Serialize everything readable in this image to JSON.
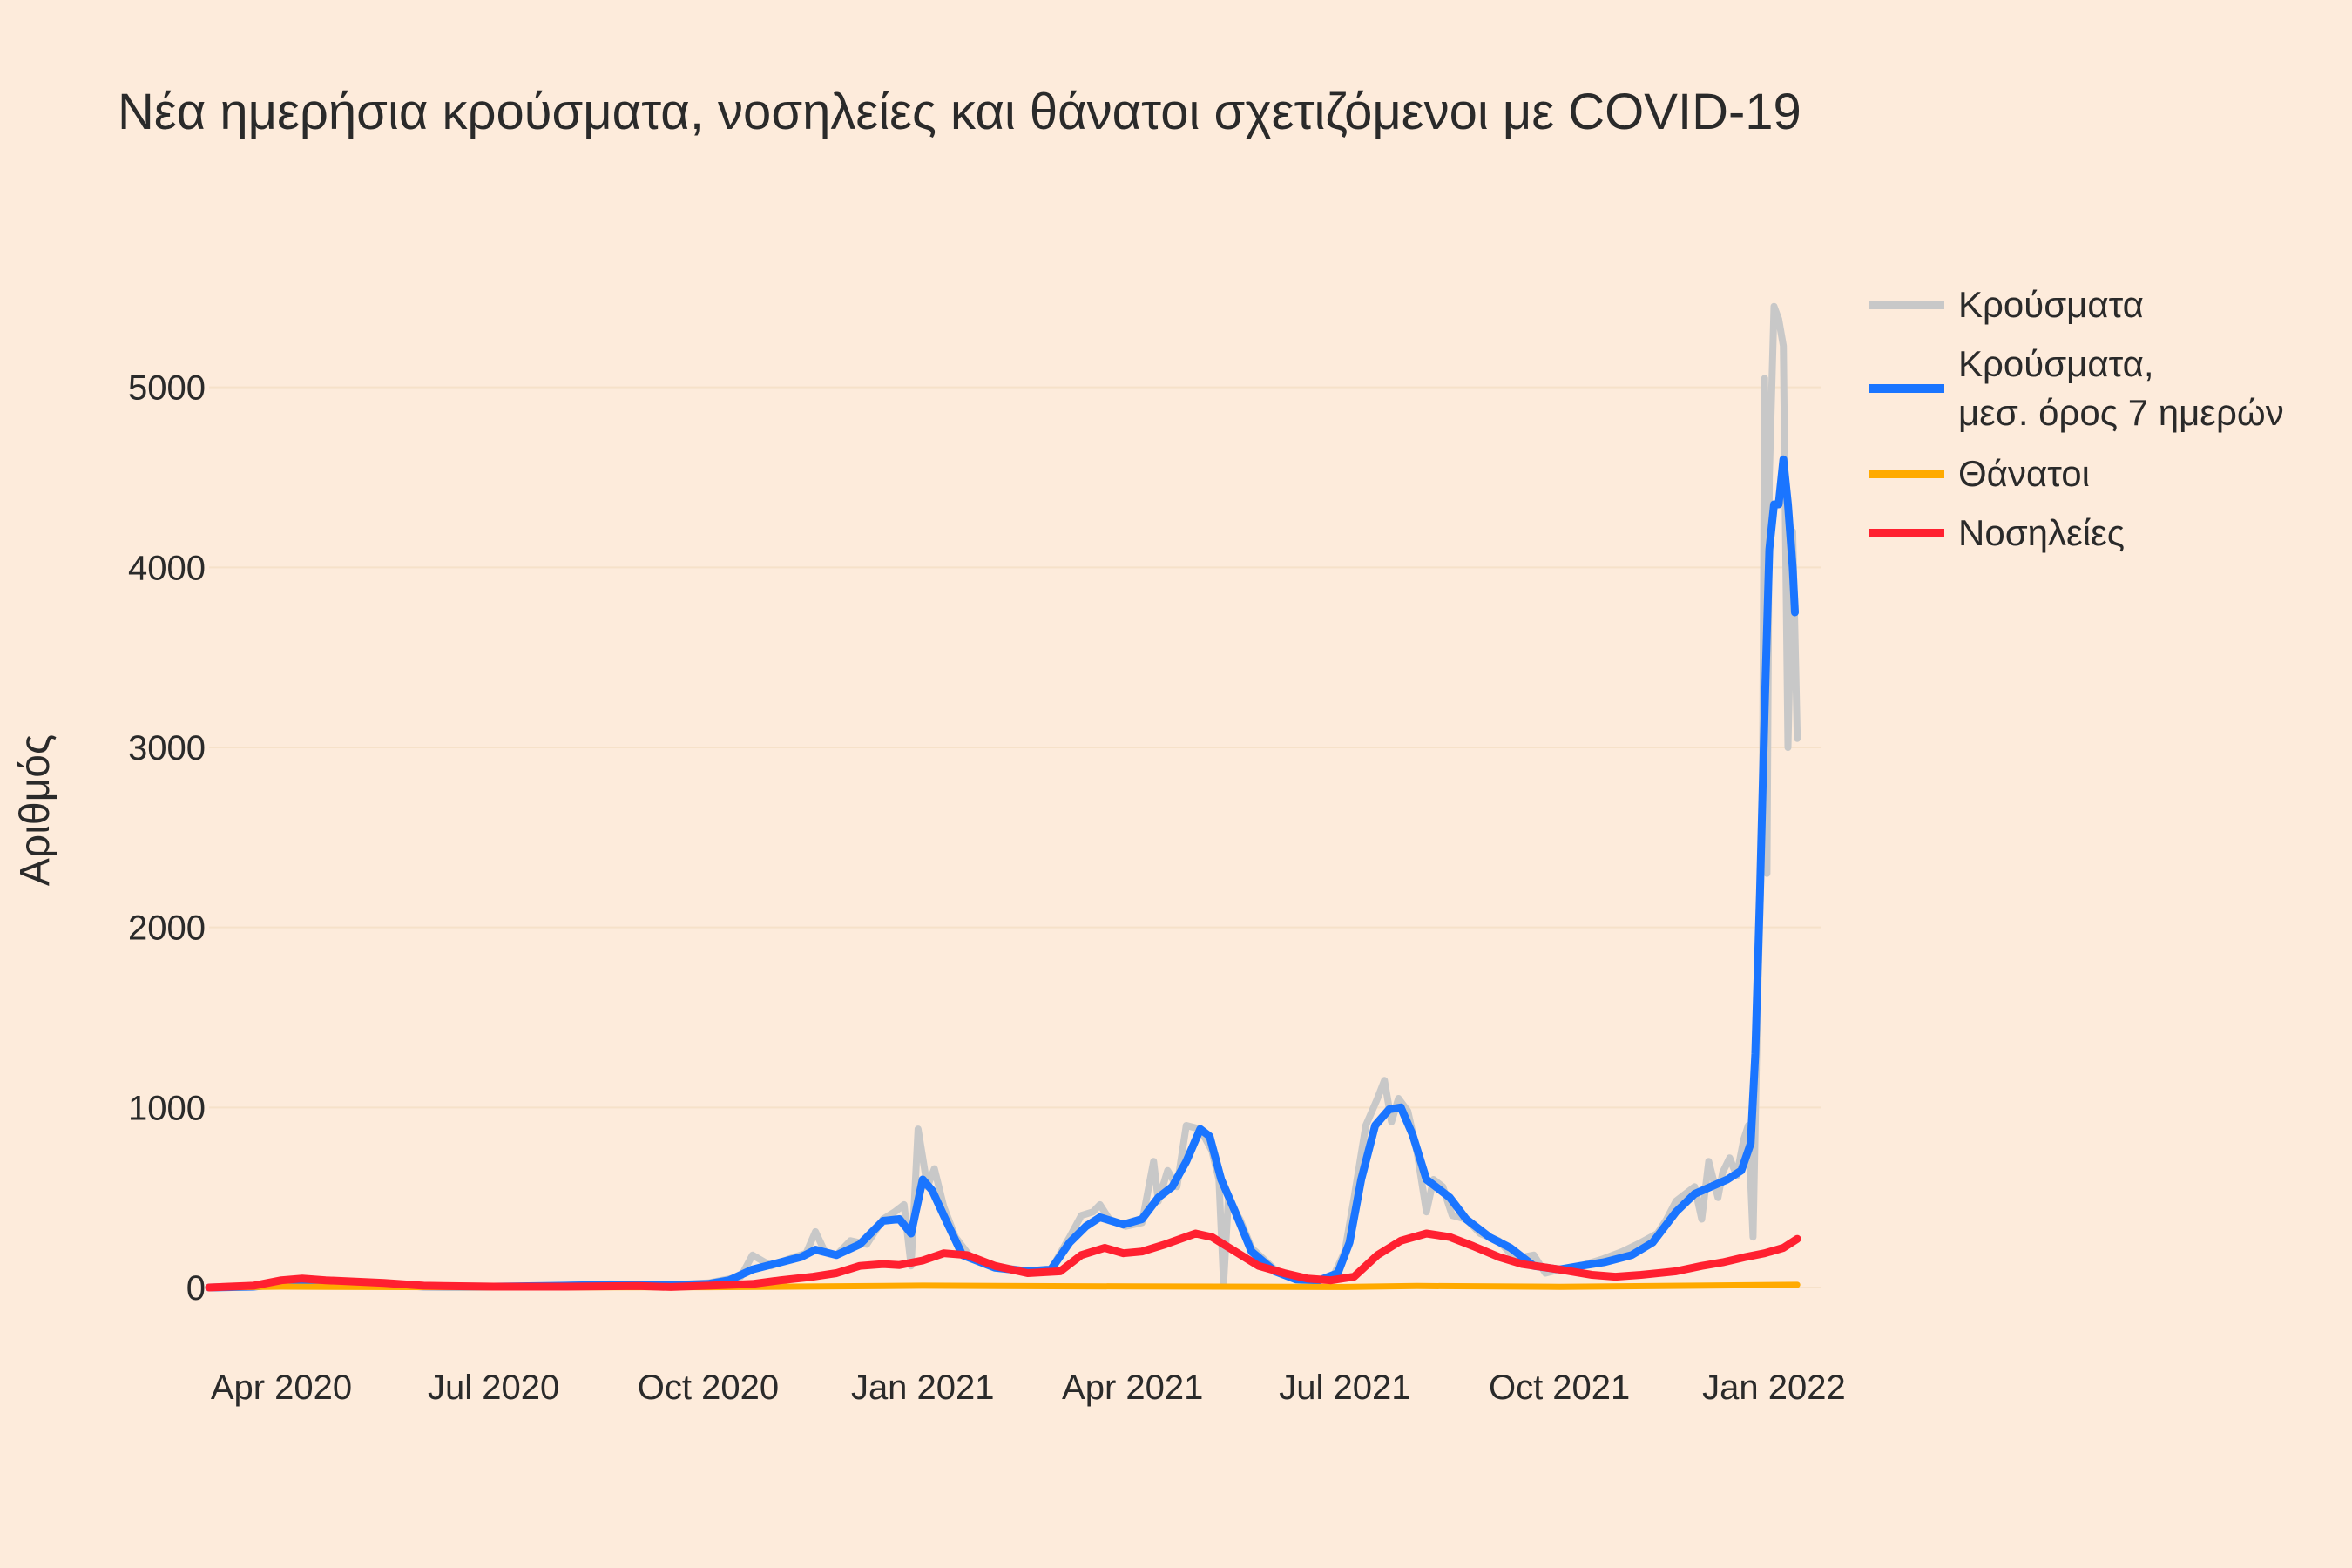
{
  "chart_data": {
    "type": "line",
    "title": "Νέα ημερήσια κρούσματα, νοσηλείες και θάνατοι σχετιζόμενοι με COVID-19",
    "xlabel": "",
    "ylabel": "Αριθμός",
    "xlim": [
      "2020-03-01",
      "2022-01-21"
    ],
    "ylim": [
      -300,
      5700
    ],
    "x_ticks": [
      {
        "date": "2020-04-01",
        "label": "Apr 2020"
      },
      {
        "date": "2020-07-01",
        "label": "Jul 2020"
      },
      {
        "date": "2020-10-01",
        "label": "Oct 2020"
      },
      {
        "date": "2021-01-01",
        "label": "Jan 2021"
      },
      {
        "date": "2021-04-01",
        "label": "Apr 2021"
      },
      {
        "date": "2021-07-01",
        "label": "Jul 2021"
      },
      {
        "date": "2021-10-01",
        "label": "Oct 2021"
      },
      {
        "date": "2022-01-01",
        "label": "Jan 2022"
      }
    ],
    "y_ticks": [
      0,
      1000,
      2000,
      3000,
      4000,
      5000
    ],
    "grid": true,
    "legend_position": "right",
    "series": [
      {
        "name": "Κρούσματα",
        "color": "#c8c8c8",
        "points": [
          [
            "2020-03-01",
            0
          ],
          [
            "2020-03-15",
            5
          ],
          [
            "2020-04-01",
            30
          ],
          [
            "2020-04-15",
            40
          ],
          [
            "2020-05-01",
            20
          ],
          [
            "2020-06-01",
            8
          ],
          [
            "2020-07-01",
            5
          ],
          [
            "2020-08-01",
            12
          ],
          [
            "2020-08-20",
            20
          ],
          [
            "2020-09-15",
            15
          ],
          [
            "2020-10-01",
            25
          ],
          [
            "2020-10-15",
            60
          ],
          [
            "2020-10-20",
            180
          ],
          [
            "2020-10-28",
            120
          ],
          [
            "2020-11-05",
            160
          ],
          [
            "2020-11-12",
            190
          ],
          [
            "2020-11-16",
            310
          ],
          [
            "2020-11-20",
            200
          ],
          [
            "2020-11-25",
            180
          ],
          [
            "2020-12-01",
            260
          ],
          [
            "2020-12-08",
            240
          ],
          [
            "2020-12-15",
            380
          ],
          [
            "2020-12-20",
            420
          ],
          [
            "2020-12-24",
            460
          ],
          [
            "2020-12-27",
            120
          ],
          [
            "2020-12-30",
            880
          ],
          [
            "2021-01-03",
            560
          ],
          [
            "2021-01-06",
            660
          ],
          [
            "2021-01-10",
            450
          ],
          [
            "2021-01-15",
            280
          ],
          [
            "2021-01-22",
            160
          ],
          [
            "2021-02-01",
            120
          ],
          [
            "2021-02-15",
            90
          ],
          [
            "2021-02-25",
            100
          ],
          [
            "2021-03-05",
            280
          ],
          [
            "2021-03-10",
            400
          ],
          [
            "2021-03-15",
            420
          ],
          [
            "2021-03-18",
            460
          ],
          [
            "2021-03-22",
            380
          ],
          [
            "2021-03-29",
            340
          ],
          [
            "2021-04-05",
            360
          ],
          [
            "2021-04-10",
            700
          ],
          [
            "2021-04-12",
            480
          ],
          [
            "2021-04-16",
            650
          ],
          [
            "2021-04-20",
            560
          ],
          [
            "2021-04-24",
            900
          ],
          [
            "2021-04-30",
            880
          ],
          [
            "2021-05-05",
            760
          ],
          [
            "2021-05-08",
            600
          ],
          [
            "2021-05-10",
            20
          ],
          [
            "2021-05-12",
            480
          ],
          [
            "2021-05-17",
            380
          ],
          [
            "2021-05-22",
            220
          ],
          [
            "2021-06-01",
            100
          ],
          [
            "2021-06-10",
            50
          ],
          [
            "2021-06-20",
            40
          ],
          [
            "2021-06-26",
            60
          ],
          [
            "2021-07-01",
            200
          ],
          [
            "2021-07-05",
            500
          ],
          [
            "2021-07-10",
            900
          ],
          [
            "2021-07-15",
            1050
          ],
          [
            "2021-07-18",
            1150
          ],
          [
            "2021-07-21",
            920
          ],
          [
            "2021-07-24",
            1050
          ],
          [
            "2021-07-28",
            980
          ],
          [
            "2021-08-01",
            750
          ],
          [
            "2021-08-05",
            420
          ],
          [
            "2021-08-08",
            600
          ],
          [
            "2021-08-12",
            560
          ],
          [
            "2021-08-16",
            400
          ],
          [
            "2021-08-22",
            380
          ],
          [
            "2021-08-28",
            300
          ],
          [
            "2021-09-05",
            260
          ],
          [
            "2021-09-12",
            160
          ],
          [
            "2021-09-20",
            180
          ],
          [
            "2021-09-25",
            80
          ],
          [
            "2021-10-01",
            100
          ],
          [
            "2021-10-10",
            120
          ],
          [
            "2021-10-20",
            160
          ],
          [
            "2021-10-28",
            200
          ],
          [
            "2021-11-05",
            250
          ],
          [
            "2021-11-12",
            300
          ],
          [
            "2021-11-16",
            380
          ],
          [
            "2021-11-20",
            480
          ],
          [
            "2021-11-24",
            520
          ],
          [
            "2021-11-28",
            560
          ],
          [
            "2021-12-01",
            380
          ],
          [
            "2021-12-04",
            700
          ],
          [
            "2021-12-08",
            500
          ],
          [
            "2021-12-10",
            640
          ],
          [
            "2021-12-13",
            720
          ],
          [
            "2021-12-16",
            620
          ],
          [
            "2021-12-19",
            820
          ],
          [
            "2021-12-21",
            900
          ],
          [
            "2021-12-23",
            280
          ],
          [
            "2021-12-25",
            1600
          ],
          [
            "2021-12-27",
            2600
          ],
          [
            "2021-12-28",
            5050
          ],
          [
            "2021-12-29",
            2300
          ],
          [
            "2021-12-30",
            4500
          ],
          [
            "2022-01-01",
            5450
          ],
          [
            "2022-01-03",
            5380
          ],
          [
            "2022-01-05",
            5230
          ],
          [
            "2022-01-07",
            3000
          ],
          [
            "2022-01-09",
            4200
          ],
          [
            "2022-01-11",
            3050
          ]
        ]
      },
      {
        "name": "Κρούσματα, μεσ. όρος 7 ημερών",
        "color": "#1a75ff",
        "points": [
          [
            "2020-03-01",
            0
          ],
          [
            "2020-03-20",
            5
          ],
          [
            "2020-04-01",
            20
          ],
          [
            "2020-04-15",
            30
          ],
          [
            "2020-05-01",
            20
          ],
          [
            "2020-06-01",
            6
          ],
          [
            "2020-07-01",
            5
          ],
          [
            "2020-08-01",
            10
          ],
          [
            "2020-08-20",
            15
          ],
          [
            "2020-09-15",
            14
          ],
          [
            "2020-10-01",
            20
          ],
          [
            "2020-10-10",
            40
          ],
          [
            "2020-10-20",
            100
          ],
          [
            "2020-11-01",
            140
          ],
          [
            "2020-11-10",
            170
          ],
          [
            "2020-11-16",
            210
          ],
          [
            "2020-11-25",
            180
          ],
          [
            "2020-12-05",
            240
          ],
          [
            "2020-12-15",
            370
          ],
          [
            "2020-12-22",
            380
          ],
          [
            "2020-12-27",
            300
          ],
          [
            "2021-01-01",
            600
          ],
          [
            "2021-01-05",
            540
          ],
          [
            "2021-01-10",
            400
          ],
          [
            "2021-01-18",
            180
          ],
          [
            "2021-02-01",
            110
          ],
          [
            "2021-02-15",
            90
          ],
          [
            "2021-02-25",
            100
          ],
          [
            "2021-03-05",
            250
          ],
          [
            "2021-03-12",
            340
          ],
          [
            "2021-03-18",
            390
          ],
          [
            "2021-03-28",
            350
          ],
          [
            "2021-04-05",
            380
          ],
          [
            "2021-04-12",
            500
          ],
          [
            "2021-04-18",
            560
          ],
          [
            "2021-04-24",
            700
          ],
          [
            "2021-04-30",
            880
          ],
          [
            "2021-05-04",
            840
          ],
          [
            "2021-05-09",
            600
          ],
          [
            "2021-05-15",
            420
          ],
          [
            "2021-05-22",
            200
          ],
          [
            "2021-06-01",
            90
          ],
          [
            "2021-06-10",
            45
          ],
          [
            "2021-06-20",
            40
          ],
          [
            "2021-06-28",
            80
          ],
          [
            "2021-07-03",
            250
          ],
          [
            "2021-07-08",
            600
          ],
          [
            "2021-07-14",
            900
          ],
          [
            "2021-07-20",
            990
          ],
          [
            "2021-07-25",
            1000
          ],
          [
            "2021-07-30",
            850
          ],
          [
            "2021-08-05",
            600
          ],
          [
            "2021-08-10",
            550
          ],
          [
            "2021-08-15",
            500
          ],
          [
            "2021-08-22",
            380
          ],
          [
            "2021-09-01",
            280
          ],
          [
            "2021-09-10",
            220
          ],
          [
            "2021-09-20",
            120
          ],
          [
            "2021-10-01",
            100
          ],
          [
            "2021-10-10",
            120
          ],
          [
            "2021-10-20",
            140
          ],
          [
            "2021-11-01",
            180
          ],
          [
            "2021-11-10",
            250
          ],
          [
            "2021-11-20",
            420
          ],
          [
            "2021-11-28",
            520
          ],
          [
            "2021-12-05",
            560
          ],
          [
            "2021-12-12",
            600
          ],
          [
            "2021-12-18",
            650
          ],
          [
            "2021-12-22",
            800
          ],
          [
            "2021-12-24",
            1300
          ],
          [
            "2021-12-26",
            2200
          ],
          [
            "2021-12-28",
            3200
          ],
          [
            "2021-12-30",
            4100
          ],
          [
            "2022-01-01",
            4350
          ],
          [
            "2022-01-03",
            4350
          ],
          [
            "2022-01-05",
            4600
          ],
          [
            "2022-01-07",
            4350
          ],
          [
            "2022-01-09",
            4000
          ],
          [
            "2022-01-10",
            3750
          ]
        ]
      },
      {
        "name": "Θάνατοι",
        "color": "#ffaa00",
        "points": [
          [
            "2020-03-01",
            0
          ],
          [
            "2020-04-01",
            5
          ],
          [
            "2020-07-01",
            1
          ],
          [
            "2020-10-01",
            2
          ],
          [
            "2021-01-01",
            10
          ],
          [
            "2021-04-01",
            6
          ],
          [
            "2021-07-01",
            3
          ],
          [
            "2021-08-01",
            8
          ],
          [
            "2021-10-01",
            4
          ],
          [
            "2022-01-11",
            15
          ]
        ]
      },
      {
        "name": "Νοσηλείες",
        "color": "#ff2030",
        "points": [
          [
            "2020-03-01",
            0
          ],
          [
            "2020-03-20",
            10
          ],
          [
            "2020-04-01",
            40
          ],
          [
            "2020-04-10",
            50
          ],
          [
            "2020-04-20",
            40
          ],
          [
            "2020-05-15",
            25
          ],
          [
            "2020-06-01",
            10
          ],
          [
            "2020-07-01",
            5
          ],
          [
            "2020-08-01",
            5
          ],
          [
            "2020-09-01",
            8
          ],
          [
            "2020-09-15",
            3
          ],
          [
            "2020-10-01",
            10
          ],
          [
            "2020-10-20",
            20
          ],
          [
            "2020-11-01",
            40
          ],
          [
            "2020-11-15",
            60
          ],
          [
            "2020-11-25",
            80
          ],
          [
            "2020-12-05",
            120
          ],
          [
            "2020-12-15",
            130
          ],
          [
            "2020-12-22",
            125
          ],
          [
            "2021-01-01",
            150
          ],
          [
            "2021-01-10",
            190
          ],
          [
            "2021-01-20",
            180
          ],
          [
            "2021-02-01",
            120
          ],
          [
            "2021-02-15",
            80
          ],
          [
            "2021-03-01",
            90
          ],
          [
            "2021-03-10",
            180
          ],
          [
            "2021-03-20",
            220
          ],
          [
            "2021-03-28",
            190
          ],
          [
            "2021-04-05",
            200
          ],
          [
            "2021-04-15",
            240
          ],
          [
            "2021-04-28",
            300
          ],
          [
            "2021-05-05",
            280
          ],
          [
            "2021-05-15",
            200
          ],
          [
            "2021-05-25",
            120
          ],
          [
            "2021-06-05",
            80
          ],
          [
            "2021-06-15",
            50
          ],
          [
            "2021-06-25",
            40
          ],
          [
            "2021-07-05",
            60
          ],
          [
            "2021-07-15",
            180
          ],
          [
            "2021-07-25",
            260
          ],
          [
            "2021-08-05",
            300
          ],
          [
            "2021-08-15",
            280
          ],
          [
            "2021-08-25",
            230
          ],
          [
            "2021-09-05",
            170
          ],
          [
            "2021-09-15",
            130
          ],
          [
            "2021-10-01",
            100
          ],
          [
            "2021-10-15",
            70
          ],
          [
            "2021-10-25",
            60
          ],
          [
            "2021-11-05",
            70
          ],
          [
            "2021-11-20",
            90
          ],
          [
            "2021-12-01",
            120
          ],
          [
            "2021-12-10",
            140
          ],
          [
            "2021-12-20",
            170
          ],
          [
            "2021-12-28",
            190
          ],
          [
            "2022-01-05",
            220
          ],
          [
            "2022-01-11",
            270
          ]
        ]
      }
    ]
  }
}
